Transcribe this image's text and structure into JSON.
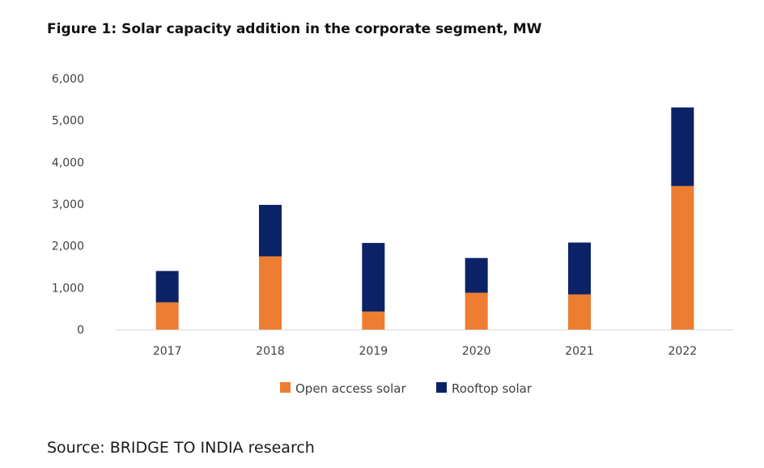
{
  "figure": {
    "title": "Figure 1: Solar capacity addition in the corporate segment, MW",
    "source": "Source: BRIDGE TO INDIA research"
  },
  "colors": {
    "open_access": "#ED7D31",
    "rooftop": "#0C2266",
    "axis": "#D9D9D9",
    "text": "#404040"
  },
  "chart_data": {
    "type": "bar",
    "stacked": true,
    "title": "Figure 1: Solar capacity addition in the corporate segment, MW",
    "xlabel": "",
    "ylabel": "",
    "categories": [
      "2017",
      "2018",
      "2019",
      "2020",
      "2021",
      "2022"
    ],
    "series": [
      {
        "name": "Open access solar",
        "color": "#ED7D31",
        "values": [
          650,
          1750,
          430,
          880,
          840,
          3430
        ]
      },
      {
        "name": "Rooftop solar",
        "color": "#0C2266",
        "values": [
          750,
          1230,
          1640,
          830,
          1240,
          1880
        ]
      }
    ],
    "ylim": [
      0,
      6000
    ],
    "yticks": [
      0,
      1000,
      2000,
      3000,
      4000,
      5000,
      6000
    ],
    "ytick_labels": [
      "0",
      "1,000",
      "2,000",
      "3,000",
      "4,000",
      "5,000",
      "6,000"
    ],
    "grid": false,
    "legend": "bottom"
  }
}
